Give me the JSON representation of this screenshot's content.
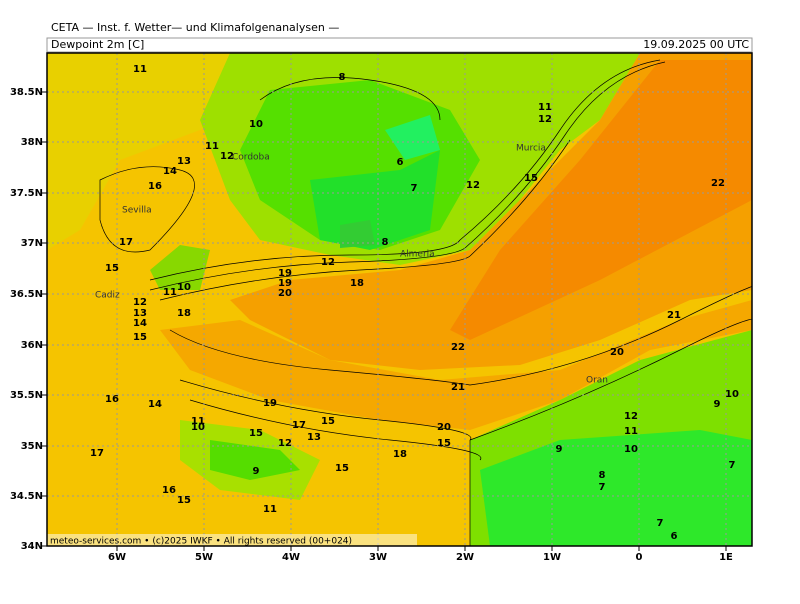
{
  "header": {
    "source": "CETA — Inst. f. Wetter— und Klimafolgenanalysen —",
    "title": "Dewpoint 2m [C]",
    "date": "19.09.2025 00 UTC"
  },
  "map": {
    "lat_labels": [
      "38.5N",
      "38N",
      "37.5N",
      "37N",
      "36.5N",
      "36N",
      "35.5N",
      "35N",
      "34.5N",
      "34N"
    ],
    "lon_labels": [
      "6W",
      "5W",
      "4W",
      "3W",
      "2W",
      "1W",
      "0",
      "1E"
    ],
    "cities": [
      "Sevilla",
      "Cordoba",
      "Murcia",
      "Almeria",
      "Cadiz",
      "Oran"
    ],
    "contour_labels": [
      "11",
      "8",
      "10",
      "11",
      "12",
      "13",
      "14",
      "16",
      "17",
      "15",
      "6",
      "7",
      "12",
      "11",
      "12",
      "15",
      "22",
      "12",
      "19",
      "19",
      "20",
      "18",
      "11",
      "10",
      "12",
      "13",
      "14",
      "15",
      "18",
      "22",
      "21",
      "20",
      "21",
      "16",
      "14",
      "19",
      "11",
      "10",
      "17",
      "15",
      "15",
      "12",
      "13",
      "20",
      "15",
      "18",
      "17",
      "9",
      "15",
      "9",
      "10",
      "11",
      "12",
      "10",
      "9",
      "7",
      "8",
      "7",
      "16",
      "15",
      "11",
      "7",
      "6",
      "8"
    ],
    "footer": "meteo-services.com • (c)2025 IWKF • All rights reserved (00+024)"
  }
}
